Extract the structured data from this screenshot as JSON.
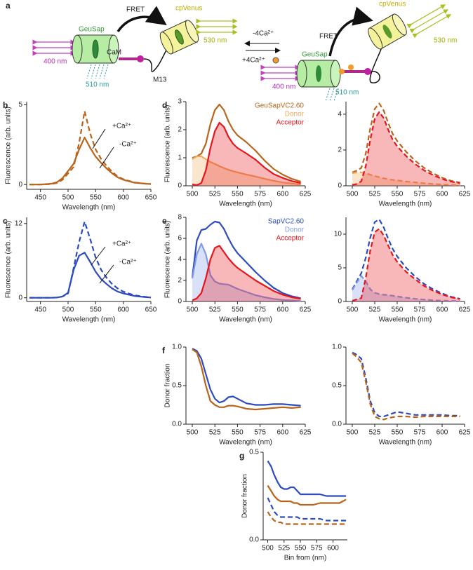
{
  "diagram": {
    "label": "a",
    "left": {
      "donor": "GeuSap",
      "linker": "CaM",
      "peptide": "M13",
      "fret": "FRET",
      "acceptor": "cpVenus",
      "excitation": "400 nm",
      "donor_emission": "510 nm",
      "acceptor_emission": "530 nm"
    },
    "arrows": {
      "minus": "-4Ca²⁺",
      "plus": "+4Ca²⁺"
    },
    "right": {
      "donor": "GeuSap",
      "fret": "FRET",
      "acceptor": "cpVenus",
      "excitation": "400 nm",
      "donor_emission": "510 nm",
      "acceptor_emission": "530 nm"
    }
  },
  "chart_data": [
    {
      "type": "line",
      "label": "b",
      "xlabel": "Wavelength (nm)",
      "ylabel": "Fluorescence  (arb. units)",
      "x": [
        430,
        450,
        470,
        480,
        490,
        500,
        510,
        520,
        530,
        540,
        550,
        560,
        570,
        580,
        590,
        600,
        620,
        640,
        650
      ],
      "xlim": [
        425,
        650
      ],
      "xticks": [
        450,
        500,
        550,
        600,
        650
      ],
      "ylim": [
        -0.3,
        5.2
      ],
      "yticks": [
        0,
        5
      ],
      "annotations": [
        "+Ca²⁺",
        "-Ca²⁺"
      ],
      "series": [
        {
          "color": "#b8651b",
          "dash": false,
          "values": [
            0,
            0,
            0.05,
            0.15,
            0.4,
            0.85,
            1.3,
            2.2,
            2.95,
            2.3,
            1.75,
            1.35,
            1.0,
            0.7,
            0.45,
            0.3,
            0.12,
            0.05,
            0.03
          ]
        },
        {
          "color": "#b8651b",
          "dash": true,
          "values": [
            0,
            0,
            0.03,
            0.1,
            0.3,
            0.7,
            1.1,
            2.6,
            4.6,
            3.2,
            2.2,
            1.6,
            1.15,
            0.8,
            0.5,
            0.33,
            0.13,
            0.05,
            0.03
          ]
        }
      ]
    },
    {
      "type": "line",
      "label": "c",
      "xlabel": "Wavelength (nm)",
      "ylabel": "Fluorescence  (arb. units)",
      "x": [
        430,
        450,
        470,
        480,
        490,
        500,
        510,
        520,
        530,
        540,
        550,
        560,
        570,
        580,
        590,
        600,
        620,
        640,
        650
      ],
      "xlim": [
        425,
        650
      ],
      "xticks": [
        450,
        500,
        550,
        600,
        650
      ],
      "ylim": [
        -0.6,
        13
      ],
      "yticks": [
        0,
        12
      ],
      "annotations": [
        "+Ca²⁺",
        "-Ca²⁺"
      ],
      "series": [
        {
          "color": "#2b4bbf",
          "dash": false,
          "values": [
            0,
            0,
            0,
            0.05,
            0.2,
            0.8,
            4.5,
            6.8,
            7.3,
            5.8,
            4.2,
            3.0,
            2.2,
            1.5,
            1.0,
            0.7,
            0.3,
            0.1,
            0.05
          ]
        },
        {
          "color": "#2b4bbf",
          "dash": true,
          "values": [
            0,
            0,
            0,
            0.05,
            0.2,
            0.7,
            4.8,
            9,
            12.3,
            9.5,
            6.5,
            4.5,
            3.2,
            2.2,
            1.5,
            1.0,
            0.4,
            0.15,
            0.05
          ]
        }
      ]
    },
    {
      "type": "line",
      "label": "d",
      "xlabel": "Wavelength (nm)",
      "ylabel": "Fluorescence (arb. units)",
      "legend": "upper right",
      "x": [
        500,
        505,
        510,
        515,
        520,
        525,
        530,
        535,
        540,
        545,
        550,
        560,
        570,
        580,
        590,
        600,
        610,
        620
      ],
      "xlim": [
        493,
        625
      ],
      "xticks": [
        500,
        525,
        550,
        575,
        600,
        625
      ],
      "ylim": [
        0,
        3.0
      ],
      "yticks": [
        0,
        1,
        2,
        3
      ],
      "series": [
        {
          "name": "GeuSapVC2.60",
          "color": "#b8651b",
          "dash": false,
          "fill": false,
          "values": [
            1.0,
            1.05,
            1.15,
            1.5,
            2.2,
            2.7,
            2.9,
            2.7,
            2.3,
            2.0,
            1.8,
            1.55,
            1.25,
            0.9,
            0.6,
            0.4,
            0.25,
            0.15
          ]
        },
        {
          "name": "Donor",
          "color": "#f0a95a",
          "dash": false,
          "fill": true,
          "values": [
            0.95,
            1.05,
            1.05,
            0.95,
            0.85,
            0.78,
            0.7,
            0.63,
            0.57,
            0.52,
            0.48,
            0.4,
            0.33,
            0.25,
            0.18,
            0.12,
            0.08,
            0.05
          ]
        },
        {
          "name": "Acceptor",
          "color": "#e8141b",
          "dash": false,
          "fill": true,
          "values": [
            0.05,
            0.02,
            0.1,
            0.55,
            1.35,
            1.95,
            2.25,
            2.1,
            1.75,
            1.5,
            1.35,
            1.15,
            0.93,
            0.65,
            0.42,
            0.28,
            0.17,
            0.1
          ]
        }
      ]
    },
    {
      "type": "line",
      "xlabel": "Wavelength (nm)",
      "x": [
        500,
        505,
        510,
        515,
        520,
        525,
        530,
        535,
        540,
        545,
        550,
        560,
        570,
        580,
        590,
        600,
        610,
        620
      ],
      "xlim": [
        493,
        625
      ],
      "xticks": [
        500,
        525,
        550,
        575,
        600,
        625
      ],
      "ylim": [
        0,
        4.7
      ],
      "yticks": [
        0,
        2,
        4
      ],
      "series": [
        {
          "color": "#b8651b",
          "dash": true,
          "fill": false,
          "values": [
            0.75,
            0.85,
            1.0,
            1.8,
            3.2,
            4.3,
            4.6,
            4.2,
            3.5,
            2.9,
            2.5,
            1.9,
            1.4,
            1.0,
            0.7,
            0.45,
            0.28,
            0.18
          ]
        },
        {
          "color": "#f0a95a",
          "dash": true,
          "fill": true,
          "values": [
            0.7,
            0.75,
            0.75,
            0.7,
            0.62,
            0.55,
            0.48,
            0.42,
            0.37,
            0.33,
            0.3,
            0.24,
            0.19,
            0.14,
            0.1,
            0.07,
            0.05,
            0.03
          ]
        },
        {
          "color": "#e8141b",
          "dash": true,
          "fill": true,
          "values": [
            0.05,
            0.1,
            0.25,
            1.1,
            2.58,
            3.75,
            4.12,
            3.78,
            3.13,
            2.57,
            2.2,
            1.66,
            1.21,
            0.86,
            0.6,
            0.38,
            0.23,
            0.15
          ]
        }
      ]
    },
    {
      "type": "line",
      "label": "e",
      "xlabel": "Wavelength (nm)",
      "ylabel": "Fluorescence (arb. units)",
      "legend": "upper right",
      "x": [
        500,
        505,
        510,
        515,
        520,
        525,
        530,
        535,
        540,
        545,
        550,
        560,
        570,
        580,
        590,
        600,
        610,
        620
      ],
      "xlim": [
        493,
        625
      ],
      "xticks": [
        500,
        525,
        550,
        575,
        600,
        625
      ],
      "ylim": [
        0,
        8
      ],
      "yticks": [
        0,
        2,
        4,
        6,
        8
      ],
      "series": [
        {
          "name": "SapVC2.60",
          "color": "#2b4bbf",
          "dash": false,
          "fill": false,
          "values": [
            2.3,
            5.8,
            6.8,
            6.9,
            7.3,
            7.6,
            7.5,
            6.9,
            6.0,
            5.2,
            4.6,
            3.7,
            2.8,
            2.0,
            1.3,
            0.8,
            0.5,
            0.3
          ]
        },
        {
          "name": "Donor",
          "color": "#7f9be6",
          "dash": false,
          "fill": true,
          "values": [
            2.2,
            4.5,
            5.5,
            4.5,
            2.5,
            1.9,
            1.7,
            1.65,
            1.6,
            1.4,
            1.2,
            0.9,
            0.6,
            0.4,
            0.25,
            0.15,
            0.1,
            0.05
          ]
        },
        {
          "name": "Acceptor",
          "color": "#e8141b",
          "dash": false,
          "fill": true,
          "values": [
            0.1,
            0.3,
            0.8,
            2.2,
            4.0,
            5.1,
            5.3,
            4.7,
            4.1,
            3.6,
            3.2,
            2.6,
            2.0,
            1.5,
            1.0,
            0.65,
            0.4,
            0.25
          ]
        }
      ]
    },
    {
      "type": "line",
      "xlabel": "Wavelength (nm)",
      "x": [
        500,
        505,
        510,
        515,
        520,
        525,
        530,
        535,
        540,
        545,
        550,
        560,
        570,
        580,
        590,
        600,
        610,
        620
      ],
      "xlim": [
        493,
        625
      ],
      "xticks": [
        500,
        525,
        550,
        575,
        600,
        625
      ],
      "ylim": [
        0,
        12.5
      ],
      "yticks": [
        0,
        5,
        10
      ],
      "series": [
        {
          "color": "#2b4bbf",
          "dash": true,
          "fill": false,
          "values": [
            1.8,
            3.0,
            4.2,
            6.5,
            9.5,
            11.8,
            12.2,
            11.0,
            9.3,
            7.8,
            6.7,
            5.0,
            3.7,
            2.6,
            1.8,
            1.2,
            0.7,
            0.4
          ]
        },
        {
          "color": "#7f9be6",
          "dash": true,
          "fill": true,
          "values": [
            1.7,
            2.8,
            3.8,
            3.0,
            1.8,
            1.3,
            1.1,
            1.0,
            0.95,
            0.85,
            0.75,
            0.55,
            0.4,
            0.28,
            0.18,
            0.12,
            0.08,
            0.05
          ]
        },
        {
          "color": "#e8141b",
          "dash": true,
          "fill": true,
          "values": [
            0.1,
            0.3,
            0.5,
            3.5,
            7.6,
            10.3,
            10.8,
            9.8,
            8.3,
            6.9,
            5.9,
            4.4,
            3.3,
            2.3,
            1.6,
            1.05,
            0.62,
            0.35
          ]
        }
      ]
    },
    {
      "type": "line",
      "label": "f",
      "xlabel": "Wavelength (nm)",
      "ylabel": "Donor fraction",
      "x": [
        500,
        505,
        510,
        515,
        520,
        525,
        530,
        535,
        540,
        545,
        550,
        560,
        570,
        580,
        590,
        600,
        610,
        620
      ],
      "xlim": [
        493,
        625
      ],
      "xticks": [
        500,
        525,
        550,
        575,
        600,
        625
      ],
      "ylim": [
        0,
        1
      ],
      "yticks": [
        {
          "value": 0,
          "label": "0.0"
        },
        0.5,
        {
          "value": 1,
          "label": "1.0"
        }
      ],
      "series": [
        {
          "color": "#2b4bbf",
          "dash": false,
          "values": [
            0.98,
            0.95,
            0.85,
            0.65,
            0.45,
            0.33,
            0.28,
            0.3,
            0.35,
            0.36,
            0.33,
            0.27,
            0.25,
            0.25,
            0.26,
            0.26,
            0.25,
            0.24
          ]
        },
        {
          "color": "#b8651b",
          "dash": false,
          "values": [
            0.97,
            0.93,
            0.75,
            0.5,
            0.3,
            0.25,
            0.22,
            0.22,
            0.24,
            0.24,
            0.23,
            0.2,
            0.19,
            0.2,
            0.21,
            0.22,
            0.21,
            0.22
          ]
        }
      ]
    },
    {
      "type": "line",
      "xlabel": "Wavelength (nm)",
      "x": [
        500,
        505,
        510,
        515,
        520,
        525,
        530,
        535,
        540,
        545,
        550,
        560,
        570,
        580,
        590,
        600,
        610,
        620
      ],
      "xlim": [
        493,
        625
      ],
      "xticks": [
        500,
        525,
        550,
        575,
        600,
        625
      ],
      "ylim": [
        0,
        1
      ],
      "yticks": [
        {
          "value": 0,
          "label": "0.0"
        },
        0.5,
        {
          "value": 1,
          "label": "1.0"
        }
      ],
      "series": [
        {
          "color": "#2b4bbf",
          "dash": true,
          "values": [
            0.93,
            0.9,
            0.85,
            0.6,
            0.3,
            0.15,
            0.1,
            0.1,
            0.12,
            0.14,
            0.16,
            0.14,
            0.12,
            0.12,
            0.12,
            0.12,
            0.11,
            0.11
          ]
        },
        {
          "color": "#b8651b",
          "dash": true,
          "values": [
            0.92,
            0.87,
            0.8,
            0.55,
            0.26,
            0.1,
            0.07,
            0.06,
            0.08,
            0.09,
            0.1,
            0.1,
            0.09,
            0.1,
            0.1,
            0.1,
            0.1,
            0.1
          ]
        }
      ]
    },
    {
      "type": "line",
      "label": "g",
      "xlabel": "Bin from (nm)",
      "ylabel": "Donor fraction",
      "x": [
        500,
        505,
        510,
        515,
        520,
        525,
        530,
        535,
        540,
        545,
        550,
        560,
        570,
        580,
        590,
        600,
        610,
        620
      ],
      "xlim": [
        493,
        622
      ],
      "xticks": [
        500,
        525,
        550,
        575,
        600
      ],
      "ylim": [
        0,
        0.5
      ],
      "yticks": [
        {
          "value": 0,
          "label": "0.0"
        },
        0.5
      ],
      "series": [
        {
          "color": "#2b4bbf",
          "dash": false,
          "values": [
            0.45,
            0.42,
            0.37,
            0.33,
            0.3,
            0.29,
            0.29,
            0.3,
            0.3,
            0.28,
            0.26,
            0.26,
            0.26,
            0.26,
            0.25,
            0.25,
            0.25,
            0.25
          ]
        },
        {
          "color": "#b8651b",
          "dash": false,
          "values": [
            0.31,
            0.28,
            0.25,
            0.23,
            0.22,
            0.22,
            0.22,
            0.22,
            0.21,
            0.21,
            0.2,
            0.2,
            0.2,
            0.21,
            0.21,
            0.21,
            0.21,
            0.23
          ]
        },
        {
          "color": "#2b4bbf",
          "dash": true,
          "values": [
            0.24,
            0.2,
            0.16,
            0.14,
            0.13,
            0.13,
            0.13,
            0.13,
            0.13,
            0.13,
            0.12,
            0.12,
            0.12,
            0.12,
            0.11,
            0.11,
            0.11,
            0.11
          ]
        },
        {
          "color": "#b8651b",
          "dash": true,
          "values": [
            0.16,
            0.13,
            0.11,
            0.1,
            0.1,
            0.09,
            0.09,
            0.09,
            0.09,
            0.09,
            0.09,
            0.09,
            0.09,
            0.09,
            0.09,
            0.09,
            0.09,
            0.09
          ]
        }
      ]
    }
  ]
}
